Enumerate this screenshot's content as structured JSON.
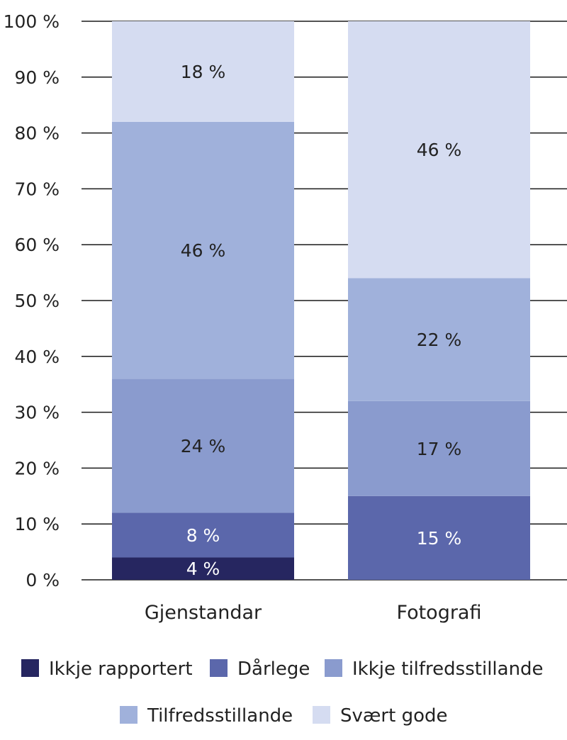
{
  "chart_data": {
    "type": "bar",
    "stacked": true,
    "categories": [
      "Gjenstandar",
      "Fotografi"
    ],
    "series": [
      {
        "name": "Ikkje rapportert",
        "values": [
          4,
          0
        ],
        "labels": [
          "4 %",
          ""
        ],
        "color": "#262660"
      },
      {
        "name": "Dårlege",
        "values": [
          8,
          15
        ],
        "labels": [
          "8 %",
          "15 %"
        ],
        "color": "#5b67ab"
      },
      {
        "name": "Ikkje tilfredsstillande",
        "values": [
          24,
          17
        ],
        "labels": [
          "24 %",
          "17 %"
        ],
        "color": "#8a9bce"
      },
      {
        "name": "Tilfredsstillande",
        "values": [
          46,
          22
        ],
        "labels": [
          "46 %",
          "22 %"
        ],
        "color": "#a0b1db"
      },
      {
        "name": "Svært gode",
        "values": [
          18,
          46
        ],
        "labels": [
          "18 %",
          "46 %"
        ],
        "color": "#d5dcf1"
      }
    ],
    "ylim": [
      0,
      100
    ],
    "yticks": [
      "0 %",
      "10 %",
      "20 %",
      "30 %",
      "40 %",
      "50 %",
      "60 %",
      "70 %",
      "80 %",
      "90 %",
      "100 %"
    ],
    "grid": true,
    "legend_position": "bottom",
    "light_label_color": "#ffffff",
    "dark_label_color": "#222222"
  }
}
